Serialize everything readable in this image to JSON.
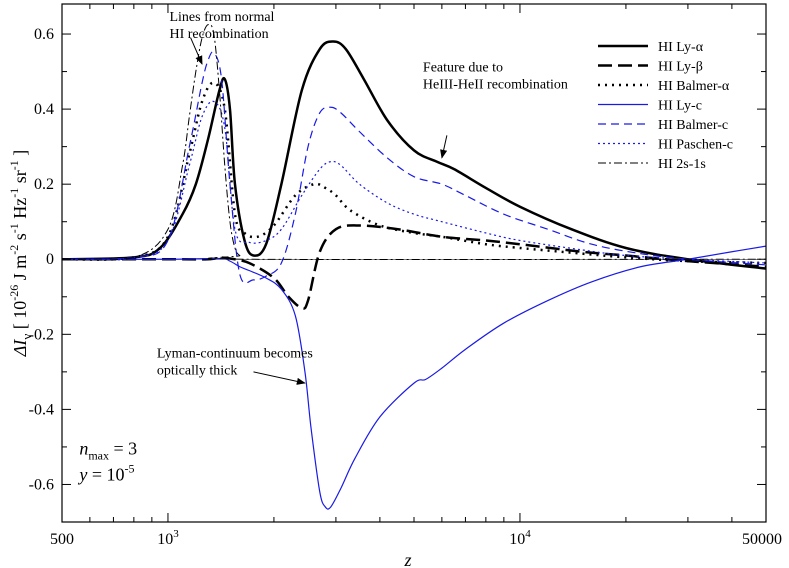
{
  "chart_data": {
    "type": "line",
    "x_scale": "log",
    "xlim": [
      500,
      50000
    ],
    "ylim": [
      -0.7,
      0.68
    ],
    "grid": false,
    "legend_position": "top-right",
    "xlabel": "z",
    "ylabel": {
      "main": "ΔI",
      "main_sub": "ν",
      "units": [
        "[ 10",
        "-26",
        " J m",
        "-2",
        " s",
        "-1",
        " Hz",
        "-1",
        " sr",
        "-1",
        " ]"
      ]
    },
    "x_ticks": [
      {
        "value": 500,
        "base": "500",
        "exp": ""
      },
      {
        "value": 1000,
        "base": "10",
        "exp": "3"
      },
      {
        "value": 10000,
        "base": "10",
        "exp": "4"
      },
      {
        "value": 50000,
        "base": "50000",
        "exp": ""
      }
    ],
    "y_ticks": [
      {
        "value": -0.6,
        "label": "-0.6"
      },
      {
        "value": -0.4,
        "label": "-0.4"
      },
      {
        "value": -0.2,
        "label": "-0.2"
      },
      {
        "value": 0,
        "label": "0"
      },
      {
        "value": 0.2,
        "label": "0.2"
      },
      {
        "value": 0.4,
        "label": "0.4"
      },
      {
        "value": 0.6,
        "label": "0.6"
      }
    ],
    "series": [
      {
        "name": "HI Ly-α",
        "color": "#000000",
        "dash": "solid",
        "width": 2.5,
        "x": [
          500,
          800,
          950,
          1100,
          1200,
          1300,
          1400,
          1450,
          1500,
          1550,
          1650,
          1750,
          1900,
          2100,
          2400,
          2700,
          2950,
          3200,
          3600,
          4200,
          5000,
          5800,
          6500,
          8000,
          10000,
          14000,
          20000,
          30000,
          50000
        ],
        "y": [
          0,
          0.005,
          0.03,
          0.12,
          0.2,
          0.32,
          0.45,
          0.48,
          0.4,
          0.2,
          0.05,
          0.01,
          0.04,
          0.2,
          0.45,
          0.56,
          0.58,
          0.56,
          0.48,
          0.37,
          0.29,
          0.26,
          0.24,
          0.19,
          0.14,
          0.08,
          0.03,
          0.0,
          -0.025
        ]
      },
      {
        "name": "HI Ly-β",
        "color": "#000000",
        "dash": "14,6",
        "width": 2.5,
        "x": [
          500,
          1000,
          1300,
          1400,
          1500,
          1700,
          2000,
          2200,
          2400,
          2500,
          2700,
          3000,
          3500,
          4500,
          6000,
          8000,
          10000,
          15000,
          20000,
          30000,
          50000
        ],
        "y": [
          0,
          0,
          0.0,
          0.004,
          0.002,
          -0.01,
          -0.05,
          -0.1,
          -0.13,
          -0.11,
          0.02,
          0.08,
          0.09,
          0.08,
          0.06,
          0.05,
          0.04,
          0.02,
          0.01,
          -0.005,
          -0.02
        ]
      },
      {
        "name": "HI Balmer-α",
        "color": "#000000",
        "dash": "2,5",
        "width": 2.5,
        "x": [
          500,
          800,
          1000,
          1150,
          1250,
          1350,
          1450,
          1550,
          1650,
          1800,
          2000,
          2300,
          2600,
          2800,
          3000,
          3300,
          4000,
          5000,
          6000,
          8000,
          10000,
          15000,
          20000,
          30000,
          50000
        ],
        "y": [
          0,
          0.005,
          0.06,
          0.28,
          0.42,
          0.47,
          0.4,
          0.12,
          0.07,
          0.06,
          0.09,
          0.17,
          0.2,
          0.19,
          0.17,
          0.13,
          0.09,
          0.07,
          0.06,
          0.04,
          0.03,
          0.015,
          0.005,
          -0.005,
          -0.01
        ]
      },
      {
        "name": "HI Ly-c",
        "color": "#1a1ae6",
        "dash": "solid",
        "width": 1.2,
        "x": [
          500,
          1000,
          1400,
          1500,
          1600,
          1700,
          1900,
          2100,
          2300,
          2450,
          2550,
          2700,
          2800,
          2900,
          3100,
          3400,
          4000,
          5000,
          5400,
          6000,
          7000,
          9000,
          12000,
          16000,
          22000,
          30000,
          40000,
          50000
        ],
        "y": [
          0,
          0,
          0.002,
          -0.005,
          -0.02,
          -0.03,
          -0.05,
          -0.08,
          -0.15,
          -0.3,
          -0.45,
          -0.62,
          -0.66,
          -0.66,
          -0.61,
          -0.53,
          -0.42,
          -0.33,
          -0.32,
          -0.29,
          -0.24,
          -0.17,
          -0.11,
          -0.06,
          -0.02,
          0.0,
          0.02,
          0.035
        ]
      },
      {
        "name": "HI Balmer-c",
        "color": "#1a1ae6",
        "dash": "8,5",
        "width": 1.2,
        "x": [
          500,
          800,
          1000,
          1150,
          1250,
          1300,
          1350,
          1420,
          1500,
          1600,
          1750,
          1900,
          2100,
          2300,
          2500,
          2700,
          2900,
          3100,
          3500,
          4200,
          5000,
          6000,
          7000,
          9000,
          12000,
          16000,
          22000,
          30000,
          50000
        ],
        "y": [
          0,
          0.005,
          0.05,
          0.3,
          0.47,
          0.53,
          0.55,
          0.48,
          0.2,
          -0.04,
          -0.055,
          -0.045,
          -0.01,
          0.12,
          0.3,
          0.39,
          0.405,
          0.39,
          0.34,
          0.27,
          0.22,
          0.2,
          0.17,
          0.12,
          0.08,
          0.04,
          0.015,
          0.0,
          -0.015
        ]
      },
      {
        "name": "HI Paschen-c",
        "color": "#1a1ae6",
        "dash": "2,3",
        "width": 1.2,
        "x": [
          500,
          800,
          1000,
          1150,
          1250,
          1350,
          1450,
          1550,
          1700,
          1900,
          2100,
          2400,
          2700,
          2900,
          3100,
          3500,
          4200,
          5000,
          6000,
          8000,
          10000,
          15000,
          20000,
          30000,
          50000
        ],
        "y": [
          0,
          0.005,
          0.05,
          0.25,
          0.38,
          0.42,
          0.35,
          0.08,
          0.045,
          0.05,
          0.08,
          0.17,
          0.24,
          0.26,
          0.25,
          0.2,
          0.15,
          0.12,
          0.1,
          0.07,
          0.05,
          0.025,
          0.01,
          0.0,
          -0.01
        ]
      },
      {
        "name": "HI 2s-1s",
        "color": "#000000",
        "dash": "8,3,2,3",
        "width": 1.0,
        "x": [
          500,
          800,
          1000,
          1100,
          1150,
          1200,
          1250,
          1300,
          1350,
          1400,
          1450,
          1500,
          1550,
          1600,
          1700,
          50000
        ],
        "y": [
          0,
          0.005,
          0.08,
          0.25,
          0.38,
          0.5,
          0.59,
          0.625,
          0.6,
          0.45,
          0.25,
          0.1,
          0.03,
          0.01,
          0.0,
          0.0
        ]
      }
    ],
    "annotations": [
      {
        "id": "normal-recomb",
        "lines": [
          "Lines from normal",
          "HI recombination"
        ],
        "text_x": 1010,
        "text_y": 0.635,
        "arrow_from": [
          1160,
          0.59
        ],
        "arrow_to": [
          1250,
          0.52
        ]
      },
      {
        "id": "heiii-heii",
        "lines": [
          "Feature due to",
          "HeIII-HeII recombination"
        ],
        "text_x": 5300,
        "text_y": 0.5,
        "arrow_from": [
          6200,
          0.33
        ],
        "arrow_to": [
          6000,
          0.27
        ]
      },
      {
        "id": "lyman-thick",
        "lines": [
          "Lyman-continuum becomes",
          "optically thick"
        ],
        "text_x": 930,
        "text_y": -0.262,
        "arrow_from": [
          1750,
          -0.3
        ],
        "arrow_to": [
          2450,
          -0.33
        ]
      }
    ],
    "params": [
      {
        "base": "n",
        "sub": "max",
        "tail": " = 3",
        "x": 560,
        "y": -0.52
      },
      {
        "base": "y",
        "tail": " = 10",
        "sup": "-5",
        "x": 560,
        "y": -0.59
      }
    ]
  }
}
